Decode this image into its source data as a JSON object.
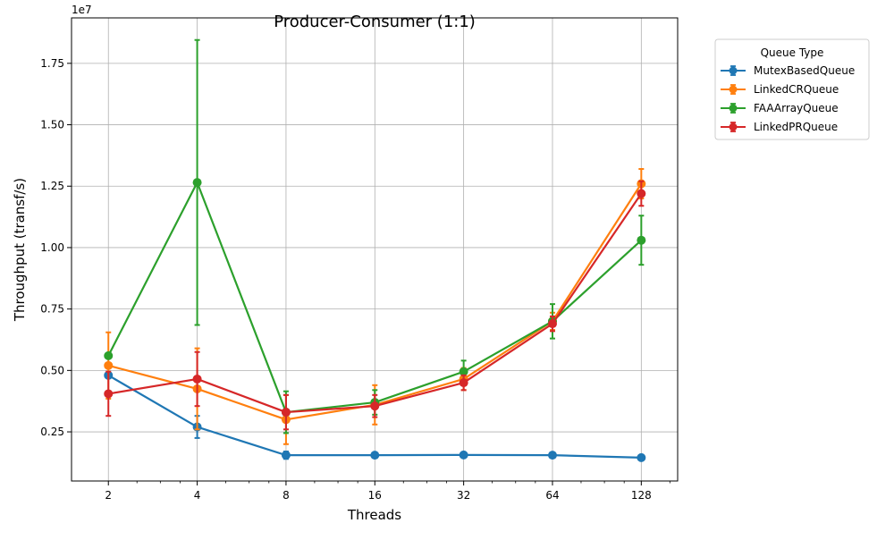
{
  "chart_data": {
    "type": "line",
    "title": "Producer-Consumer (1:1)",
    "xlabel": "Threads",
    "ylabel": "Throughput (transf/s)",
    "x_scale": "log2",
    "x": [
      2,
      4,
      8,
      16,
      32,
      64,
      128
    ],
    "x_tick_labels": [
      "2",
      "4",
      "8",
      "16",
      "32",
      "64",
      "128"
    ],
    "y_offset_label": "1e7",
    "y_tick_values": [
      0.25,
      0.5,
      0.75,
      1.0,
      1.25,
      1.5,
      1.75
    ],
    "y_tick_labels": [
      "0.25",
      "0.50",
      "0.75",
      "1.00",
      "1.25",
      "1.50",
      "1.75"
    ],
    "ylim": [
      0.05,
      1.935
    ],
    "grid": true,
    "legend": {
      "title": "Queue Type",
      "placement": "outside-top-right"
    },
    "series": [
      {
        "name": "MutexBasedQueue",
        "color": "#1f77b4",
        "values": [
          0.48,
          0.27,
          0.155,
          0.155,
          0.156,
          0.155,
          0.145
        ],
        "errors": [
          0.0,
          0.045,
          0.015,
          0.005,
          0.005,
          0.005,
          0.005
        ]
      },
      {
        "name": "LinkedCRQueue",
        "color": "#ff7f0e",
        "values": [
          0.52,
          0.425,
          0.3,
          0.36,
          0.465,
          0.7,
          1.26
        ],
        "errors": [
          0.135,
          0.165,
          0.1,
          0.08,
          0.045,
          0.035,
          0.06
        ]
      },
      {
        "name": "FAAArrayQueue",
        "color": "#2ca02c",
        "values": [
          0.56,
          1.265,
          0.33,
          0.37,
          0.495,
          0.7,
          1.03
        ],
        "errors": [
          0.0,
          0.58,
          0.085,
          0.05,
          0.045,
          0.07,
          0.1
        ]
      },
      {
        "name": "LinkedPRQueue",
        "color": "#d62728",
        "values": [
          0.405,
          0.465,
          0.33,
          0.355,
          0.45,
          0.69,
          1.22
        ],
        "errors": [
          0.09,
          0.11,
          0.07,
          0.045,
          0.03,
          0.03,
          0.05
        ]
      }
    ]
  }
}
